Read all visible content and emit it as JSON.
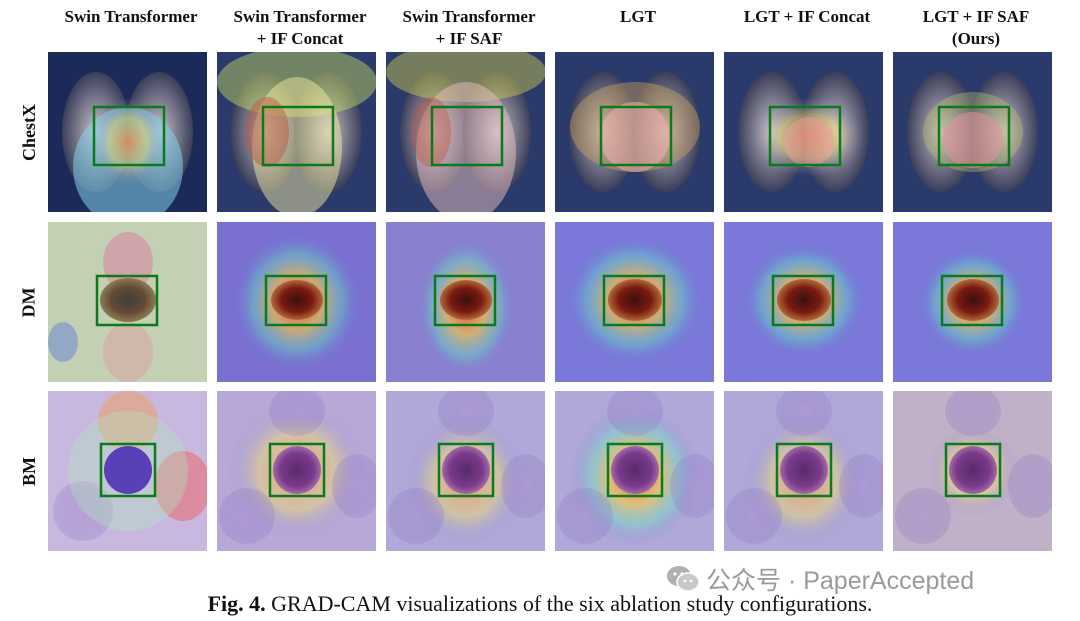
{
  "columns": [
    {
      "line1": "Swin Transformer",
      "line2": ""
    },
    {
      "line1": "Swin Transformer",
      "line2": "+ IF Concat"
    },
    {
      "line1": "Swin Transformer",
      "line2": "+ IF SAF"
    },
    {
      "line1": "LGT",
      "line2": ""
    },
    {
      "line1": "LGT + IF Concat",
      "line2": ""
    },
    {
      "line1": "LGT + IF SAF",
      "line2": "(Ours)"
    }
  ],
  "rows": [
    "ChestX",
    "DM",
    "BM"
  ],
  "caption": {
    "label": "Fig. 4.",
    "text": " GRAD-CAM visualizations of the six ablation study configurations."
  },
  "watermark": {
    "text": "公众号 · PaperAccepted",
    "icon": "wechat-icon"
  },
  "colors": {
    "box": "#0a7a1a",
    "text": "#111111"
  }
}
